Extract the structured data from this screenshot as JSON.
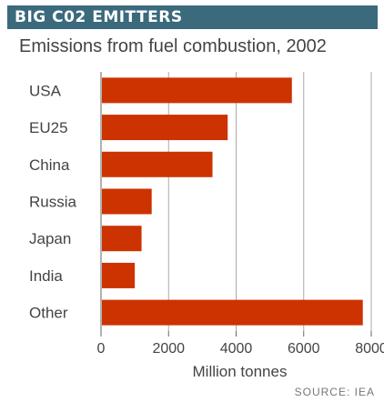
{
  "header": {
    "title": "BIG C02 EMITTERS",
    "subtitle": "Emissions from fuel combustion, 2002",
    "source": "SOURCE: IEA"
  },
  "colors": {
    "bar": "#cc3300",
    "title_bg": "#3a6a7c",
    "grid": "#aaaaaa",
    "axis": "#666666"
  },
  "chart_data": {
    "type": "bar",
    "orientation": "horizontal",
    "title": "BIG C02 EMITTERS",
    "subtitle": "Emissions from fuel combustion, 2002",
    "categories": [
      "USA",
      "EU25",
      "China",
      "Russia",
      "Japan",
      "India",
      "Other"
    ],
    "values": [
      5650,
      3750,
      3300,
      1500,
      1200,
      1000,
      7750
    ],
    "xlabel": "Million tonnes",
    "ylabel": "",
    "xlim": [
      0,
      8000
    ],
    "xticks": [
      "0",
      "2000",
      "4000",
      "6000",
      "8000"
    ],
    "grid": "vertical",
    "legend": "none"
  }
}
